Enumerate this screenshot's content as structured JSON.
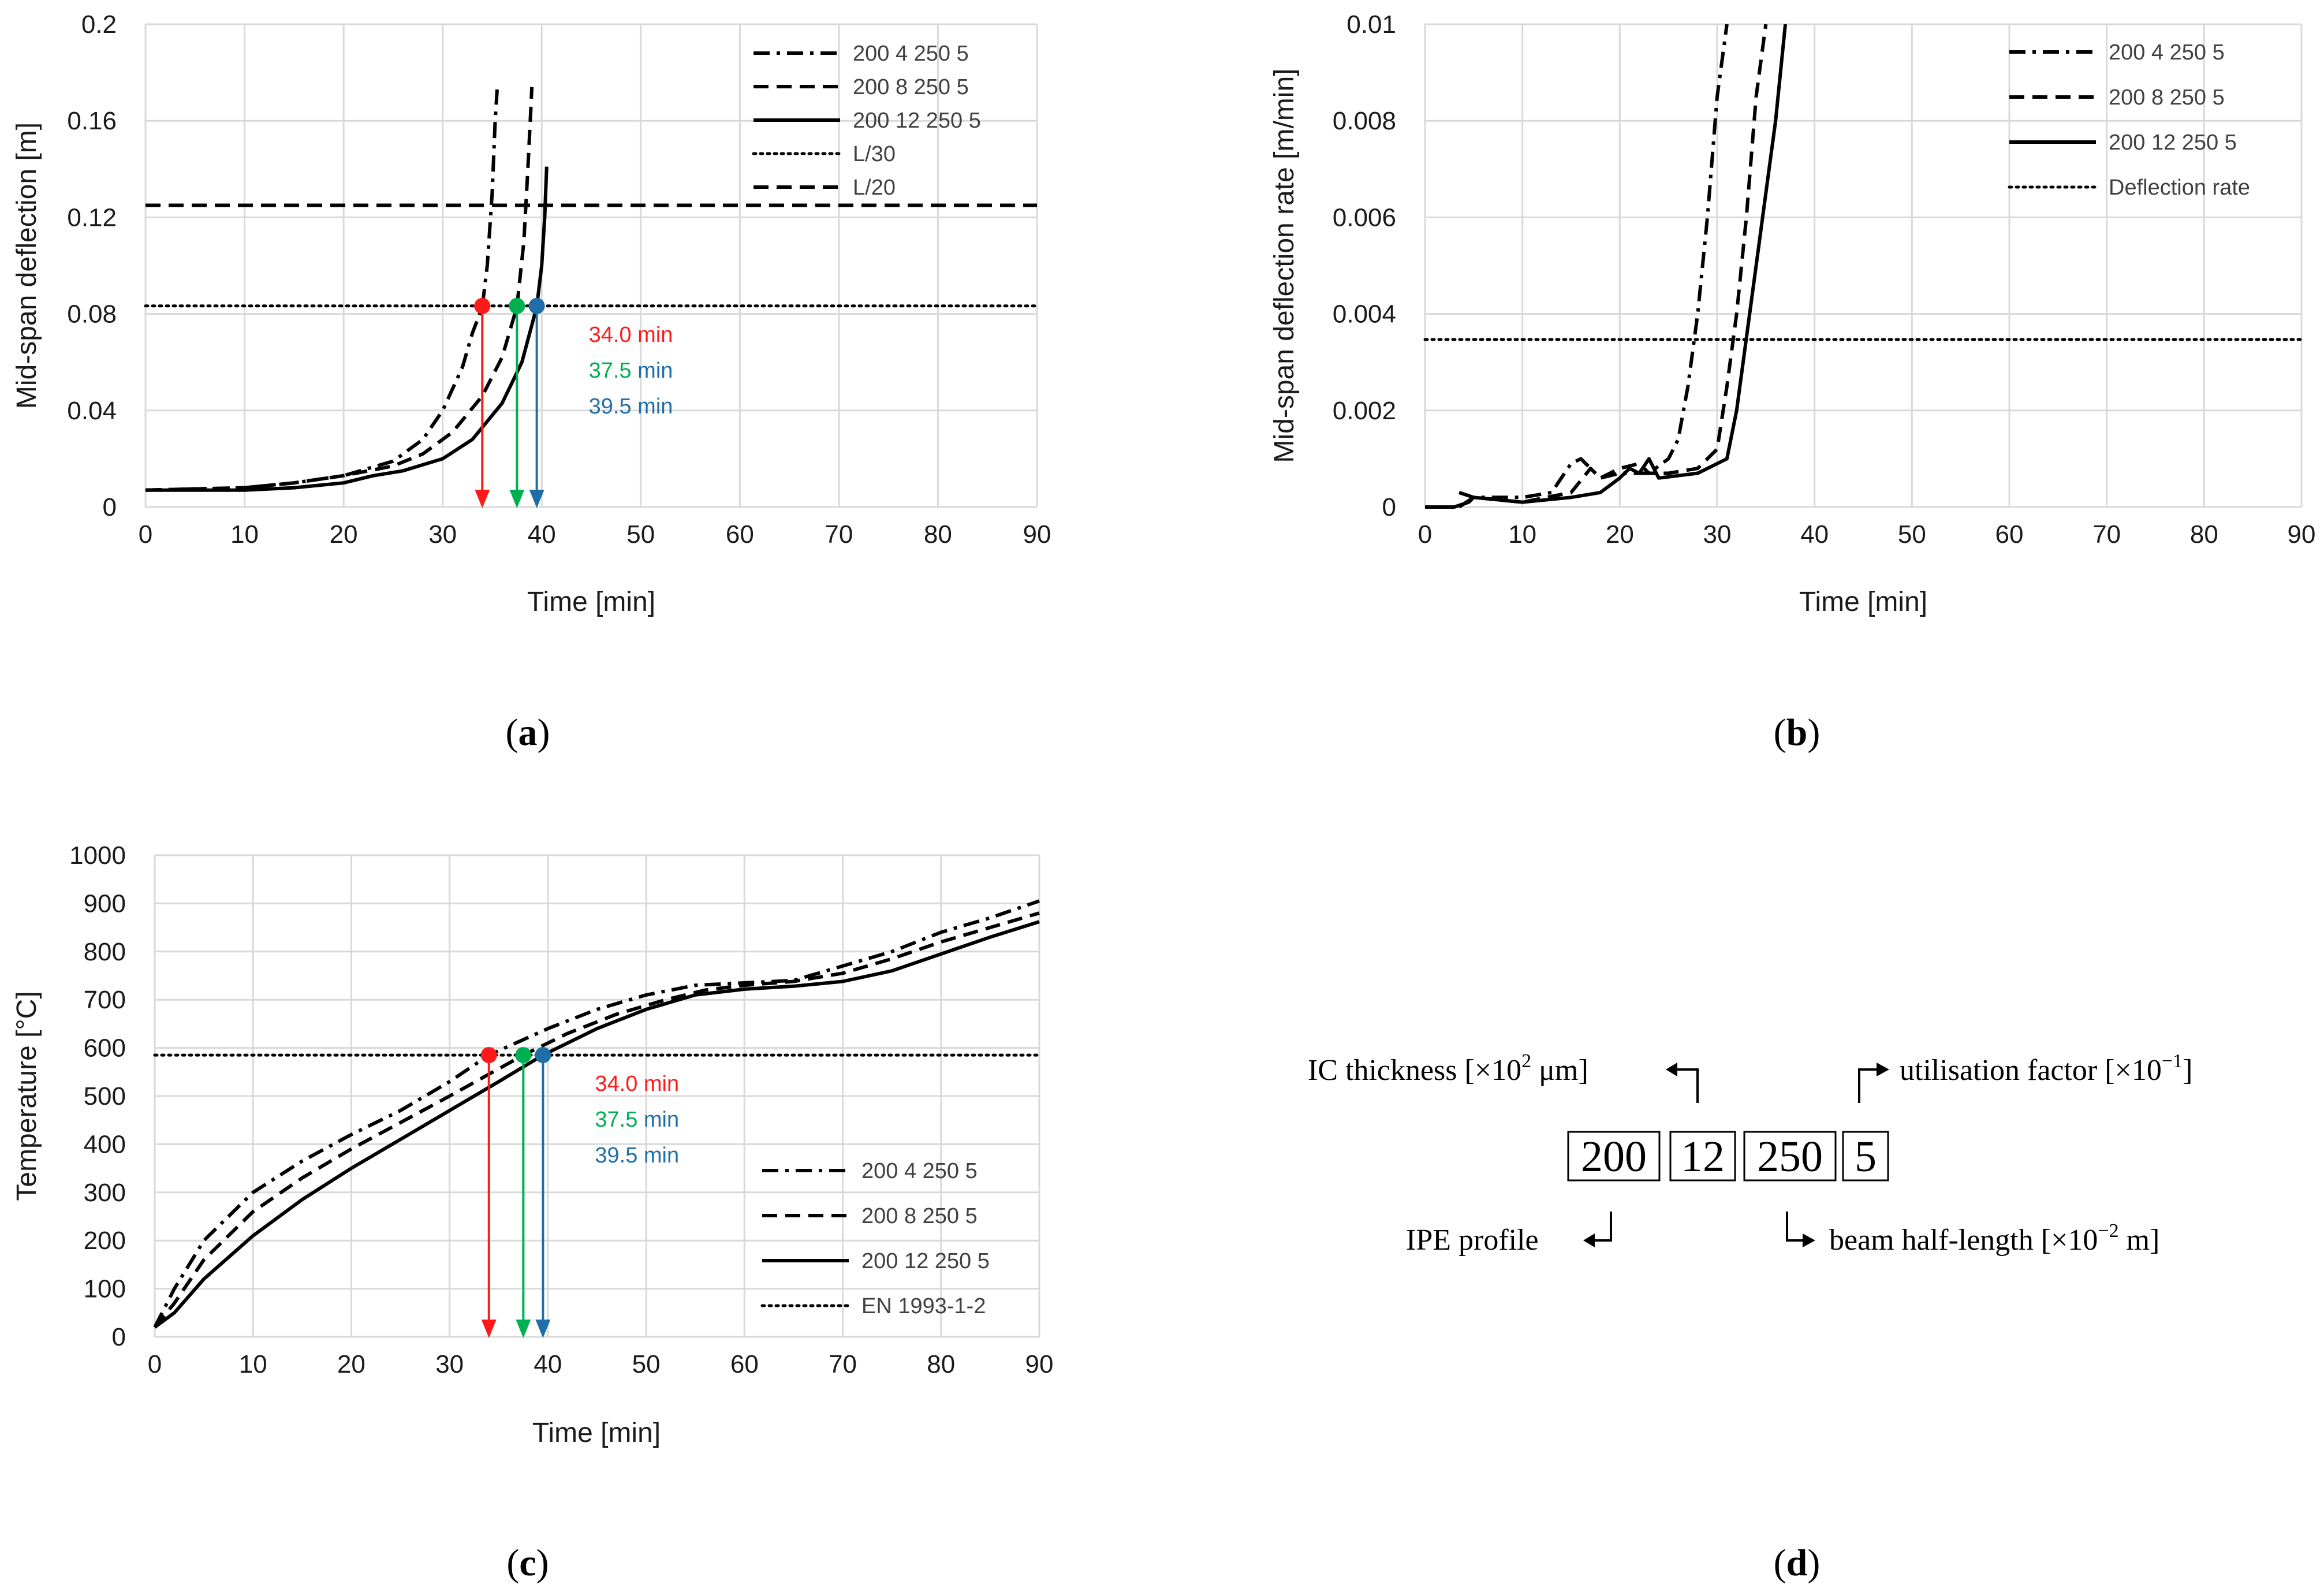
{
  "colors": {
    "red": "#ff1a1a",
    "green": "#00b050",
    "blue": "#1f6ea8",
    "line": "#000000",
    "grid": "#d9d9d9"
  },
  "chart_data": [
    {
      "id": "a",
      "type": "line",
      "caption_letter": "a",
      "xlabel": "Time [min]",
      "ylabel": "Mid-span deflection [m]",
      "xlim": [
        0,
        90
      ],
      "ylim": [
        0,
        0.2
      ],
      "xticks": [
        "0",
        "10",
        "20",
        "30",
        "40",
        "50",
        "60",
        "70",
        "80",
        "90"
      ],
      "yticks": [
        "0",
        "0.04",
        "0.08",
        "0.12",
        "0.16",
        "0.2"
      ],
      "series": [
        {
          "name": "200 4 250 5",
          "style": "dashdot",
          "points": [
            [
              0,
              0.007
            ],
            [
              10,
              0.008
            ],
            [
              15,
              0.01
            ],
            [
              20,
              0.013
            ],
            [
              25,
              0.019
            ],
            [
              28,
              0.028
            ],
            [
              30,
              0.04
            ],
            [
              32,
              0.058
            ],
            [
              33,
              0.072
            ],
            [
              34,
              0.083
            ],
            [
              34.5,
              0.1
            ],
            [
              35,
              0.13
            ],
            [
              35.3,
              0.16
            ],
            [
              35.5,
              0.173
            ]
          ]
        },
        {
          "name": "200 8 250 5",
          "style": "dash",
          "points": [
            [
              0,
              0.007
            ],
            [
              10,
              0.008
            ],
            [
              15,
              0.01
            ],
            [
              20,
              0.013
            ],
            [
              25,
              0.017
            ],
            [
              28,
              0.022
            ],
            [
              31,
              0.031
            ],
            [
              34,
              0.046
            ],
            [
              36,
              0.062
            ],
            [
              37.5,
              0.083
            ],
            [
              38.2,
              0.11
            ],
            [
              38.6,
              0.14
            ],
            [
              38.9,
              0.165
            ],
            [
              39,
              0.174
            ]
          ]
        },
        {
          "name": "200 12 250 5",
          "style": "solid",
          "points": [
            [
              0,
              0.007
            ],
            [
              10,
              0.007
            ],
            [
              15,
              0.008
            ],
            [
              20,
              0.01
            ],
            [
              23,
              0.013
            ],
            [
              26,
              0.015
            ],
            [
              30,
              0.02
            ],
            [
              33,
              0.028
            ],
            [
              36,
              0.043
            ],
            [
              38,
              0.06
            ],
            [
              39.5,
              0.083
            ],
            [
              40,
              0.1
            ],
            [
              40.3,
              0.12
            ],
            [
              40.5,
              0.141
            ]
          ]
        },
        {
          "name": "L/30",
          "style": "dot",
          "points": [
            [
              0,
              0.0833
            ],
            [
              90,
              0.0833
            ]
          ]
        },
        {
          "name": "L/20",
          "style": "dashbold",
          "points": [
            [
              0,
              0.125
            ],
            [
              90,
              0.125
            ]
          ]
        }
      ],
      "markers": [
        {
          "x": 34.0,
          "y": 0.0833,
          "color": "red",
          "label": "34.0",
          "unit": " min"
        },
        {
          "x": 37.5,
          "y": 0.0833,
          "color": "green",
          "label": "37.5",
          "unit": " min"
        },
        {
          "x": 39.5,
          "y": 0.0833,
          "color": "blue",
          "label": "39.5",
          "unit": " min"
        }
      ],
      "legend_position": "top-right",
      "grid": true
    },
    {
      "id": "b",
      "type": "line",
      "caption_letter": "b",
      "xlabel": "Time [min]",
      "ylabel": "Mid-span deflection rate [m/min]",
      "xlim": [
        0,
        90
      ],
      "ylim": [
        0,
        0.01
      ],
      "xticks": [
        "0",
        "10",
        "20",
        "30",
        "40",
        "50",
        "60",
        "70",
        "80",
        "90"
      ],
      "yticks": [
        "0",
        "0.002",
        "0.004",
        "0.006",
        "0.008",
        "0.01"
      ],
      "series": [
        {
          "name": "200 4 250 5",
          "style": "dashdot",
          "points": [
            [
              3.5,
              0.0003
            ],
            [
              5,
              0.0002
            ],
            [
              10,
              0.0002
            ],
            [
              13,
              0.0003
            ],
            [
              14,
              0.0006
            ],
            [
              15,
              0.0009
            ],
            [
              16,
              0.001
            ],
            [
              17,
              0.0008
            ],
            [
              18,
              0.0006
            ],
            [
              20,
              0.0007
            ],
            [
              23,
              0.0007
            ],
            [
              25,
              0.001
            ],
            [
              26,
              0.0014
            ],
            [
              27,
              0.0025
            ],
            [
              28,
              0.004
            ],
            [
              29,
              0.006
            ],
            [
              30,
              0.0085
            ],
            [
              31,
              0.01
            ]
          ]
        },
        {
          "name": "200 8 250 5",
          "style": "dash",
          "points": [
            [
              3.5,
              0
            ],
            [
              5,
              0.0002
            ],
            [
              10,
              0.0001
            ],
            [
              15,
              0.0003
            ],
            [
              17,
              0.0008
            ],
            [
              18,
              0.0006
            ],
            [
              20,
              0.0008
            ],
            [
              22,
              0.0009
            ],
            [
              23,
              0.0007
            ],
            [
              25,
              0.0007
            ],
            [
              28,
              0.0008
            ],
            [
              30,
              0.0012
            ],
            [
              31,
              0.0025
            ],
            [
              32,
              0.004
            ],
            [
              33,
              0.006
            ],
            [
              34,
              0.0085
            ],
            [
              35,
              0.01
            ]
          ]
        },
        {
          "name": "200 12 250 5",
          "style": "solid",
          "points": [
            [
              0,
              0
            ],
            [
              3,
              0
            ],
            [
              4.5,
              0.0001
            ],
            [
              5,
              0.0002
            ],
            [
              10,
              0.0001
            ],
            [
              15,
              0.0002
            ],
            [
              18,
              0.0003
            ],
            [
              20,
              0.0006
            ],
            [
              21,
              0.0008
            ],
            [
              22,
              0.0007
            ],
            [
              23,
              0.001
            ],
            [
              24,
              0.0006
            ],
            [
              28,
              0.0007
            ],
            [
              30,
              0.0009
            ],
            [
              31,
              0.001
            ],
            [
              32,
              0.002
            ],
            [
              33,
              0.0035
            ],
            [
              34,
              0.005
            ],
            [
              35,
              0.0065
            ],
            [
              36,
              0.008
            ],
            [
              37,
              0.01
            ]
          ]
        },
        {
          "name": "Deflection rate",
          "style": "dot",
          "points": [
            [
              0,
              0.00347
            ],
            [
              90,
              0.00347
            ]
          ]
        }
      ],
      "legend_position": "top-right",
      "grid": true
    },
    {
      "id": "c",
      "type": "line",
      "caption_letter": "c",
      "xlabel": "Time [min]",
      "ylabel": "Temperature [°C]",
      "xlim": [
        0,
        90
      ],
      "ylim": [
        0,
        1000
      ],
      "xticks": [
        "0",
        "10",
        "20",
        "30",
        "40",
        "50",
        "60",
        "70",
        "80",
        "90"
      ],
      "yticks": [
        "0",
        "100",
        "200",
        "300",
        "400",
        "500",
        "600",
        "700",
        "800",
        "900",
        "1000"
      ],
      "series": [
        {
          "name": "200 4 250 5",
          "style": "dashdot",
          "points": [
            [
              0,
              20
            ],
            [
              2,
              100
            ],
            [
              5,
              200
            ],
            [
              10,
              300
            ],
            [
              15,
              365
            ],
            [
              20,
              420
            ],
            [
              25,
              470
            ],
            [
              30,
              530
            ],
            [
              34,
              585
            ],
            [
              40,
              640
            ],
            [
              45,
              680
            ],
            [
              50,
              710
            ],
            [
              55,
              730
            ],
            [
              60,
              735
            ],
            [
              65,
              740
            ],
            [
              70,
              770
            ],
            [
              75,
              800
            ],
            [
              80,
              840
            ],
            [
              85,
              870
            ],
            [
              90,
              905
            ]
          ]
        },
        {
          "name": "200 8 250 5",
          "style": "dash",
          "points": [
            [
              0,
              20
            ],
            [
              2,
              70
            ],
            [
              5,
              160
            ],
            [
              10,
              260
            ],
            [
              15,
              330
            ],
            [
              20,
              390
            ],
            [
              25,
              445
            ],
            [
              30,
              500
            ],
            [
              37.5,
              585
            ],
            [
              42,
              630
            ],
            [
              47,
              670
            ],
            [
              52,
              700
            ],
            [
              56,
              720
            ],
            [
              60,
              730
            ],
            [
              65,
              738
            ],
            [
              70,
              755
            ],
            [
              75,
              785
            ],
            [
              80,
              820
            ],
            [
              85,
              850
            ],
            [
              90,
              880
            ]
          ]
        },
        {
          "name": "200 12 250 5",
          "style": "solid",
          "points": [
            [
              0,
              20
            ],
            [
              2,
              50
            ],
            [
              5,
              120
            ],
            [
              10,
              210
            ],
            [
              15,
              285
            ],
            [
              20,
              350
            ],
            [
              25,
              410
            ],
            [
              30,
              470
            ],
            [
              35,
              530
            ],
            [
              39.5,
              585
            ],
            [
              45,
              640
            ],
            [
              50,
              680
            ],
            [
              55,
              710
            ],
            [
              60,
              722
            ],
            [
              65,
              728
            ],
            [
              70,
              738
            ],
            [
              75,
              760
            ],
            [
              80,
              795
            ],
            [
              85,
              830
            ],
            [
              90,
              862
            ]
          ]
        },
        {
          "name": "EN 1993-1-2",
          "style": "dot",
          "points": [
            [
              0,
              585
            ],
            [
              90,
              585
            ]
          ]
        }
      ],
      "markers": [
        {
          "x": 34.0,
          "y": 585,
          "color": "red",
          "label": "34.0",
          "unit": " min"
        },
        {
          "x": 37.5,
          "y": 585,
          "color": "green",
          "label": "37.5",
          "unit": " min"
        },
        {
          "x": 39.5,
          "y": 585,
          "color": "blue",
          "label": "39.5",
          "unit": " min"
        }
      ],
      "legend_position": "bottom-right",
      "grid": true
    }
  ],
  "panel_d": {
    "caption_letter": "d",
    "codes": [
      "200",
      "12",
      "250",
      "5"
    ],
    "ic_prefix": "IC thickness [×10",
    "ic_exp": "2",
    "ic_suffix": " μm]",
    "util_prefix": "utilisation factor [×10",
    "util_exp": "−1",
    "util_suffix": "]",
    "ipe_label": "IPE profile",
    "beam_prefix": "beam half-length [×10",
    "beam_exp": "−2",
    "beam_suffix": " m]"
  }
}
